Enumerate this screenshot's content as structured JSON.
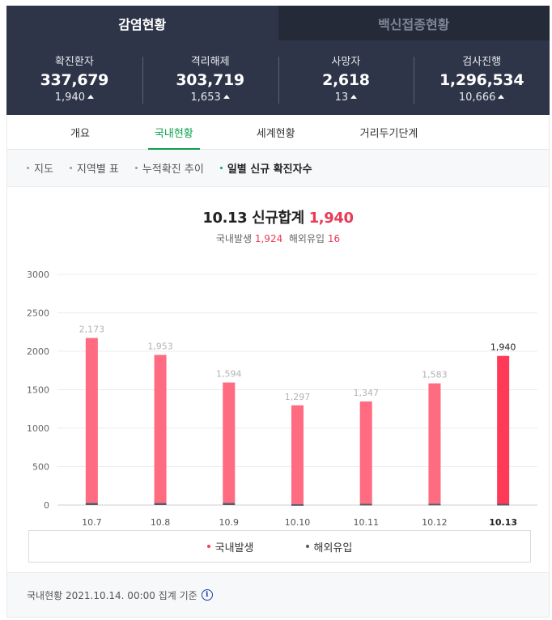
{
  "top_tabs": [
    {
      "label": "감염현황"
    },
    {
      "label": "백신접종현황"
    }
  ],
  "stats": [
    {
      "label": "확진환자",
      "value": "337,679",
      "delta": "1,940"
    },
    {
      "label": "격리해제",
      "value": "303,719",
      "delta": "1,653"
    },
    {
      "label": "사망자",
      "value": "2,618",
      "delta": "13"
    },
    {
      "label": "검사진행",
      "value": "1,296,534",
      "delta": "10,666"
    }
  ],
  "sub_tabs": [
    {
      "label": "개요"
    },
    {
      "label": "국내현황"
    },
    {
      "label": "세계현황"
    },
    {
      "label": "거리두기단계"
    }
  ],
  "filters": [
    {
      "label": "지도"
    },
    {
      "label": "지역별 표"
    },
    {
      "label": "누적확진 추이"
    },
    {
      "label": "일별 신규 확진자수"
    }
  ],
  "summary": {
    "title_prefix": "10.13 신규합계",
    "title_value": "1,940",
    "domestic_label": "국내발생",
    "domestic_value": "1,924",
    "overseas_label": "해외유입",
    "overseas_value": "16"
  },
  "chart_data": {
    "type": "bar",
    "categories": [
      "10.7",
      "10.8",
      "10.9",
      "10.10",
      "10.11",
      "10.12",
      "10.13"
    ],
    "series": [
      {
        "name": "국내발생",
        "values": [
          2145,
          1927,
          1567,
          1285,
          1331,
          1566,
          1924
        ]
      },
      {
        "name": "해외유입",
        "values": [
          28,
          26,
          27,
          12,
          16,
          17,
          16
        ]
      }
    ],
    "totals": [
      "2,173",
      "1,953",
      "1,594",
      "1,297",
      "1,347",
      "1,583",
      "1,940"
    ],
    "y_ticks": [
      "3000",
      "2500",
      "2000",
      "1500",
      "1000",
      "500",
      "0"
    ],
    "ylim": [
      0,
      3000
    ],
    "stacked": true,
    "grid": true,
    "legend": "bottom",
    "colors": {
      "domestic": "#ff6b80",
      "domestic_latest": "#ff3a57",
      "overseas": "#555a66"
    }
  },
  "footer": {
    "text": "국내현황 2021.10.14. 00:00 집계 기준",
    "icon": "info-icon"
  }
}
